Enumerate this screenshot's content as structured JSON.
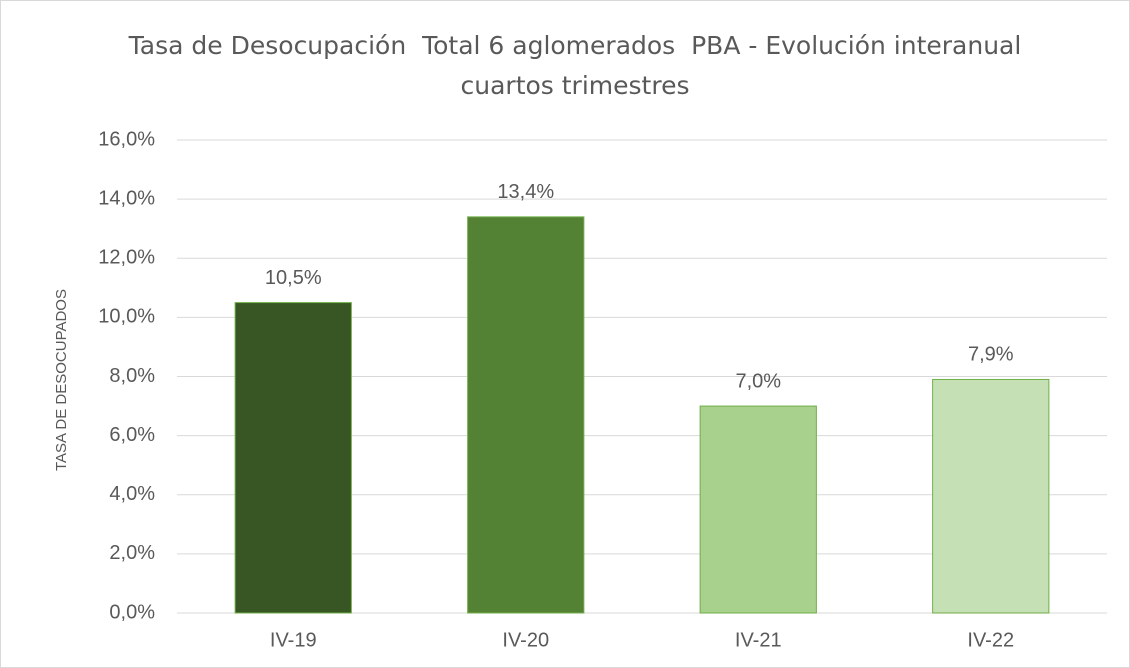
{
  "chart_data": {
    "type": "bar",
    "title": "Tasa de Desocupación  Total 6 aglomerados  PBA - Evolución interanual  cuartos trimestres",
    "y_label": "TASA DE DESOCUPADOS",
    "categories": [
      "IV-19",
      "IV-20",
      "IV-21",
      "IV-22"
    ],
    "values": [
      10.5,
      13.4,
      7.0,
      7.9
    ],
    "value_labels": [
      "10,5%",
      "13,4%",
      "7,0%",
      "7,9%"
    ],
    "colors": [
      "#375623",
      "#548235",
      "#a9d18e",
      "#c5e0b4"
    ],
    "ylim": [
      0,
      16
    ],
    "yticks": [
      {
        "value": 0,
        "label": "0,0%"
      },
      {
        "value": 2,
        "label": "2,0%"
      },
      {
        "value": 4,
        "label": "4,0%"
      },
      {
        "value": 6,
        "label": "6,0%"
      },
      {
        "value": 8,
        "label": "8,0%"
      },
      {
        "value": 10,
        "label": "10,0%"
      },
      {
        "value": 12,
        "label": "12,0%"
      },
      {
        "value": 14,
        "label": "14,0%"
      },
      {
        "value": 16,
        "label": "16,0%"
      }
    ],
    "grid": true
  }
}
